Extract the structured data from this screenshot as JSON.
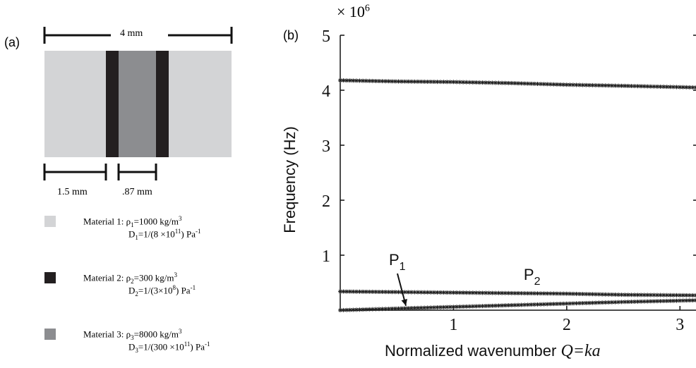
{
  "panel_a": {
    "label": "(a)",
    "total_width_label": "4 mm",
    "left_width_label": "1.5 mm",
    "mid_width_label": ".87 mm",
    "colors": {
      "material1": "#d3d4d6",
      "material2": "#231f20",
      "material3": "#8c8d90"
    },
    "legend": [
      {
        "name": "Material 1: ",
        "rho_sym": "ρ",
        "rho_sub": "1",
        "rho_val": "=1000 kg/m",
        "rho_sup": "3",
        "d_sym": "D",
        "d_sub": "1",
        "d_val": "=1/(8 ×10",
        "d_exp": "11",
        "d_tail": ") Pa",
        "d_unit_sup": "-1",
        "color": "#d3d4d6"
      },
      {
        "name": "Material 2: ",
        "rho_sym": "ρ",
        "rho_sub": "2",
        "rho_val": "=300 kg/m",
        "rho_sup": "3",
        "d_sym": "D",
        "d_sub": "2",
        "d_val": "=1/(3×10",
        "d_exp": "8",
        "d_tail": ") Pa",
        "d_unit_sup": "-1",
        "color": "#231f20"
      },
      {
        "name": "Material 3: ",
        "rho_sym": "ρ",
        "rho_sub": "3",
        "rho_val": "=8000 kg/m",
        "rho_sup": "3",
        "d_sym": "D",
        "d_sub": "3",
        "d_val": "=1/(300 ×10",
        "d_exp": "11",
        "d_tail": ") Pa",
        "d_unit_sup": "-1",
        "color": "#8c8d90"
      }
    ]
  },
  "chart_data": {
    "type": "line",
    "panel_label": "(b)",
    "multiplier_base": "× 10",
    "multiplier_exp": "6",
    "xlabel_prefix": "Normalized wavenumber ",
    "xlabel_math": "Q=ka",
    "ylabel": "Frequency (Hz)",
    "xlim": [
      0,
      3.14159
    ],
    "ylim": [
      0,
      5
    ],
    "x_ticks": [
      1,
      2,
      3
    ],
    "y_ticks": [
      1,
      2,
      3,
      4,
      5
    ],
    "x_tick_labels": [
      "1",
      "2",
      "3"
    ],
    "y_tick_labels": [
      "1",
      "2",
      "3",
      "4",
      "5"
    ],
    "series": [
      {
        "x": [
          0,
          0.5,
          1.0,
          1.5,
          2.0,
          2.5,
          3.14159
        ],
        "y": [
          4.18,
          4.16,
          4.15,
          4.13,
          4.1,
          4.08,
          4.05
        ]
      },
      {
        "x": [
          0,
          0.5,
          1.0,
          1.5,
          2.0,
          2.5,
          3.14159
        ],
        "y": [
          0.34,
          0.33,
          0.32,
          0.31,
          0.3,
          0.28,
          0.27
        ]
      },
      {
        "x": [
          0,
          0.5,
          1.0,
          1.5,
          2.0,
          2.5,
          3.14159
        ],
        "y": [
          0.0,
          0.03,
          0.06,
          0.09,
          0.12,
          0.15,
          0.18
        ]
      }
    ],
    "annotations": [
      {
        "text": "P",
        "sub": "1",
        "x": 0.43,
        "y": 0.82
      },
      {
        "text": "P",
        "sub": "2",
        "x": 1.62,
        "y": 0.55
      }
    ],
    "grid": false
  }
}
